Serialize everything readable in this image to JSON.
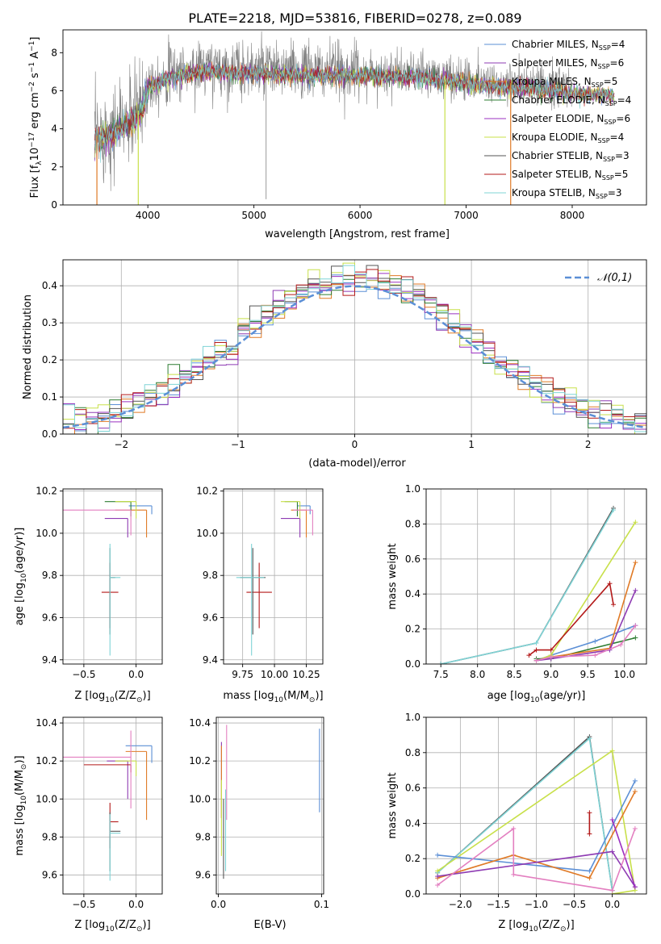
{
  "title": "PLATE=2218, MJD=53816, FIBERID=0278, z=0.089",
  "colors": {
    "chabrier_miles": "#5b8fd6",
    "salpeter_miles": "#8e3bb3",
    "kroupa_miles": "#e07a26",
    "chabrier_elodie": "#2e7d32",
    "salpeter_elodie": "#9b30c0",
    "kroupa_elodie": "#c8e04a",
    "chabrier_stelib": "#555555",
    "salpeter_stelib": "#b31919",
    "kroupa_stelib": "#7fd4d6",
    "gaussian": "#5b8fd6",
    "data": "#808080",
    "pink": "#e37fc0"
  },
  "chart_data": [
    {
      "id": "spectrum",
      "type": "line",
      "xlabel": "wavelength [Angstrom, rest frame]",
      "ylabel": "Flux [f",
      "ylabel_parts": [
        "Flux [f",
        "λ",
        "10",
        "−17",
        " erg cm",
        "−2",
        " s",
        "−1",
        " A",
        "−1",
        "]"
      ],
      "xlim": [
        3200,
        8700
      ],
      "ylim": [
        0,
        9.2
      ],
      "xticks": [
        4000,
        5000,
        6000,
        7000,
        8000
      ],
      "yticks": [
        0,
        2,
        4,
        6,
        8
      ],
      "legend_position": "right",
      "legend": [
        {
          "name": "Chabrier MILES, N",
          "sub": "SSP",
          "suffix": "=4",
          "color_key": "chabrier_miles"
        },
        {
          "name": "Salpeter MILES, N",
          "sub": "SSP",
          "suffix": "=6",
          "color_key": "salpeter_miles"
        },
        {
          "name": "Kroupa MILES, N",
          "sub": "SSP",
          "suffix": "=5",
          "color_key": "kroupa_miles"
        },
        {
          "name": "Chabrier ELODIE, N",
          "sub": "SSP",
          "suffix": "=4",
          "color_key": "chabrier_elodie"
        },
        {
          "name": "Salpeter ELODIE, N",
          "sub": "SSP",
          "suffix": "=6",
          "color_key": "salpeter_elodie"
        },
        {
          "name": "Kroupa ELODIE, N",
          "sub": "SSP",
          "suffix": "=4",
          "color_key": "kroupa_elodie"
        },
        {
          "name": "Chabrier STELIB, N",
          "sub": "SSP",
          "suffix": "=3",
          "color_key": "chabrier_stelib"
        },
        {
          "name": "Salpeter STELIB, N",
          "sub": "SSP",
          "suffix": "=5",
          "color_key": "salpeter_stelib"
        },
        {
          "name": "Kroupa STELIB, N",
          "sub": "SSP",
          "suffix": "=3",
          "color_key": "kroupa_stelib"
        }
      ],
      "continuum": [
        [
          3500,
          3.6
        ],
        [
          3650,
          3.9
        ],
        [
          3800,
          4.4
        ],
        [
          3900,
          4.9
        ],
        [
          3950,
          5.2
        ],
        [
          4000,
          6.4
        ],
        [
          4200,
          6.9
        ],
        [
          4500,
          7.2
        ],
        [
          5000,
          7.1
        ],
        [
          5500,
          7.0
        ],
        [
          6000,
          7.0
        ],
        [
          6500,
          6.9
        ],
        [
          7000,
          6.6
        ],
        [
          7400,
          6.4
        ],
        [
          7800,
          6.2
        ],
        [
          8200,
          6.0
        ],
        [
          8400,
          5.9
        ]
      ],
      "data_range": [
        3500,
        8000
      ],
      "model_range": [
        3500,
        8400
      ],
      "model_drops": [
        3520,
        3910,
        6800,
        7420
      ]
    },
    {
      "id": "residuals",
      "type": "histogram",
      "xlabel": "(data-model)/error",
      "ylabel": "Normed distribution",
      "xlim": [
        -2.5,
        2.5
      ],
      "ylim": [
        0,
        0.47
      ],
      "xticks": [
        -2,
        -1,
        0,
        1,
        2
      ],
      "yticks": [
        0.0,
        0.1,
        0.2,
        0.3,
        0.4
      ],
      "legend": [
        {
          "name": "𝒩(0,1)",
          "color_key": "gaussian"
        }
      ],
      "legend_position": "top-right",
      "gaussian": {
        "mean": 0,
        "sigma": 1
      },
      "bin_width": 0.1,
      "series": [
        "chabrier_miles",
        "salpeter_miles",
        "kroupa_miles",
        "chabrier_elodie",
        "salpeter_elodie",
        "kroupa_elodie",
        "chabrier_stelib",
        "salpeter_stelib",
        "kroupa_stelib"
      ]
    },
    {
      "id": "age_vs_z",
      "type": "scatter",
      "xlabel": "Z [log",
      "xlabel_parts": [
        "Z [log",
        "10",
        "(Z/Z",
        "⊙",
        ")]"
      ],
      "ylabel_parts": [
        "age  [log",
        "10",
        "(age/yr)]"
      ],
      "xlim": [
        -0.7,
        0.25
      ],
      "ylim": [
        9.38,
        10.21
      ],
      "xticks": [
        -0.5,
        0.0
      ],
      "yticks": [
        9.4,
        9.6,
        9.8,
        10.0,
        10.2
      ],
      "points": [
        {
          "x": 0.15,
          "y": 10.13,
          "xerr": [
            0.22,
            0.0
          ],
          "yerr": [
            0.04,
            0.0
          ],
          "color_key": "chabrier_miles"
        },
        {
          "x": -0.08,
          "y": 10.07,
          "xerr": [
            0.22,
            0.0
          ],
          "yerr": [
            0.09,
            0.0
          ],
          "color_key": "salpeter_miles"
        },
        {
          "x": 0.1,
          "y": 10.11,
          "xerr": [
            0.3,
            0.0
          ],
          "yerr": [
            0.13,
            0.0
          ],
          "color_key": "kroupa_miles"
        },
        {
          "x": -0.05,
          "y": 10.15,
          "xerr": [
            0.25,
            0.0
          ],
          "yerr": [
            0.07,
            0.0
          ],
          "color_key": "chabrier_elodie"
        },
        {
          "x": 0.0,
          "y": 10.15,
          "xerr": [
            0.2,
            0.0
          ],
          "yerr": [
            0.08,
            0.0
          ],
          "color_key": "kroupa_elodie"
        },
        {
          "x": -0.05,
          "y": 10.11,
          "xerr": [
            0.65,
            0.0
          ],
          "yerr": [
            0.12,
            0.0
          ],
          "color_key": "pink"
        },
        {
          "x": -0.25,
          "y": 9.72,
          "xerr": [
            0.08,
            0.08
          ],
          "yerr": [
            0.17,
            0.14
          ],
          "color_key": "salpeter_stelib"
        },
        {
          "x": -0.25,
          "y": 9.79,
          "xerr": [
            0.0,
            0.05
          ],
          "yerr": [
            0.27,
            0.14
          ],
          "color_key": "chabrier_stelib"
        },
        {
          "x": -0.25,
          "y": 9.79,
          "xerr": [
            0.0,
            0.1
          ],
          "yerr": [
            0.37,
            0.16
          ],
          "color_key": "kroupa_stelib"
        }
      ]
    },
    {
      "id": "age_vs_mass",
      "type": "scatter",
      "xlabel_parts": [
        "mass [log",
        "10",
        "(M/M",
        "⊙",
        ")]"
      ],
      "xlim": [
        9.6,
        10.38
      ],
      "ylim": [
        9.38,
        10.21
      ],
      "xticks": [
        9.75,
        10.0,
        10.25
      ],
      "xticklabels": [
        "9.75",
        "10.00",
        "10.25"
      ],
      "yticks": [
        9.4,
        9.6,
        9.8,
        10.0,
        10.2
      ],
      "points": [
        {
          "x": 10.28,
          "y": 10.13,
          "xerr": [
            0.1,
            0.0
          ],
          "yerr": [
            0.04,
            0.0
          ],
          "color_key": "chabrier_miles"
        },
        {
          "x": 10.2,
          "y": 10.07,
          "xerr": [
            0.15,
            0.0
          ],
          "yerr": [
            0.09,
            0.0
          ],
          "color_key": "salpeter_miles"
        },
        {
          "x": 10.25,
          "y": 10.11,
          "xerr": [
            0.12,
            0.0
          ],
          "yerr": [
            0.13,
            0.0
          ],
          "color_key": "kroupa_miles"
        },
        {
          "x": 10.18,
          "y": 10.15,
          "xerr": [
            0.1,
            0.0
          ],
          "yerr": [
            0.07,
            0.0
          ],
          "color_key": "chabrier_elodie"
        },
        {
          "x": 10.2,
          "y": 10.15,
          "xerr": [
            0.15,
            0.0
          ],
          "yerr": [
            0.08,
            0.0
          ],
          "color_key": "kroupa_elodie"
        },
        {
          "x": 10.3,
          "y": 10.11,
          "xerr": [
            0.15,
            0.0
          ],
          "yerr": [
            0.12,
            0.0
          ],
          "color_key": "pink"
        },
        {
          "x": 9.88,
          "y": 9.72,
          "xerr": [
            0.1,
            0.1
          ],
          "yerr": [
            0.17,
            0.14
          ],
          "color_key": "salpeter_stelib"
        },
        {
          "x": 9.83,
          "y": 9.79,
          "xerr": [
            0.1,
            0.1
          ],
          "yerr": [
            0.27,
            0.14
          ],
          "color_key": "chabrier_stelib"
        },
        {
          "x": 9.82,
          "y": 9.79,
          "xerr": [
            0.12,
            0.1
          ],
          "yerr": [
            0.37,
            0.16
          ],
          "color_key": "kroupa_stelib"
        }
      ]
    },
    {
      "id": "weight_vs_age",
      "type": "line",
      "xlabel_parts": [
        "age  [log",
        "10",
        "(age/yr)]"
      ],
      "ylabel": "mass weight",
      "xlim": [
        7.3,
        10.3
      ],
      "ylim": [
        0,
        1.0
      ],
      "xticks": [
        7.5,
        8.0,
        8.5,
        9.0,
        9.5,
        10.0
      ],
      "yticks": [
        0.0,
        0.2,
        0.4,
        0.6,
        0.8,
        1.0
      ],
      "series": [
        {
          "color_key": "chabrier_stelib",
          "x": [
            7.5,
            8.8,
            9.85
          ],
          "y": [
            0.0,
            0.12,
            0.89
          ]
        },
        {
          "color_key": "kroupa_stelib",
          "x": [
            7.5,
            8.8,
            9.85
          ],
          "y": [
            0.0,
            0.12,
            0.88
          ]
        },
        {
          "color_key": "chabrier_miles",
          "x": [
            8.8,
            9.0,
            9.6,
            10.15
          ],
          "y": [
            0.02,
            0.05,
            0.13,
            0.22
          ]
        },
        {
          "color_key": "kroupa_elodie",
          "x": [
            8.8,
            9.0,
            10.15
          ],
          "y": [
            0.02,
            0.05,
            0.81
          ]
        },
        {
          "color_key": "chabrier_elodie",
          "x": [
            8.8,
            9.0,
            10.15
          ],
          "y": [
            0.03,
            0.03,
            0.15
          ]
        },
        {
          "color_key": "kroupa_miles",
          "x": [
            8.8,
            9.0,
            9.8,
            10.15
          ],
          "y": [
            0.02,
            0.04,
            0.09,
            0.58
          ]
        },
        {
          "color_key": "salpeter_miles",
          "x": [
            8.8,
            9.0,
            9.8,
            10.15
          ],
          "y": [
            0.02,
            0.03,
            0.08,
            0.42
          ]
        },
        {
          "color_key": "salpeter_stelib",
          "x": [
            8.7,
            8.8,
            9.0,
            9.8,
            9.85
          ],
          "y": [
            0.05,
            0.08,
            0.08,
            0.46,
            0.34
          ]
        },
        {
          "color_key": "pink",
          "x": [
            8.8,
            9.0,
            9.6,
            9.95,
            10.15
          ],
          "y": [
            0.02,
            0.04,
            0.05,
            0.11,
            0.22
          ]
        }
      ]
    },
    {
      "id": "mass_vs_z",
      "type": "scatter",
      "xlabel_parts": [
        "Z [log",
        "10",
        "(Z/Z",
        "⊙",
        ")]"
      ],
      "ylabel_parts": [
        "mass [log",
        "10",
        "(M/M",
        "⊙",
        ")]"
      ],
      "xlim": [
        -0.7,
        0.25
      ],
      "ylim": [
        9.5,
        10.43
      ],
      "xticks": [
        -0.5,
        0.0
      ],
      "yticks": [
        9.6,
        9.8,
        10.0,
        10.2,
        10.4
      ],
      "points": [
        {
          "x": 0.15,
          "y": 10.28,
          "xerr": [
            0.25,
            0.0
          ],
          "yerr": [
            0.09,
            0.0
          ],
          "color_key": "chabrier_miles"
        },
        {
          "x": -0.08,
          "y": 10.2,
          "xerr": [
            0.2,
            0.0
          ],
          "yerr": [
            0.2,
            0.0
          ],
          "color_key": "salpeter_miles"
        },
        {
          "x": 0.1,
          "y": 10.25,
          "xerr": [
            0.2,
            0.0
          ],
          "yerr": [
            0.36,
            0.0
          ],
          "color_key": "kroupa_miles"
        },
        {
          "x": -0.05,
          "y": 10.18,
          "xerr": [
            0.45,
            0.0
          ],
          "yerr": [
            0.04,
            0.0
          ],
          "color_key": "salpeter_stelib"
        },
        {
          "x": 0.0,
          "y": 10.2,
          "xerr": [
            0.2,
            0.0
          ],
          "yerr": [
            0.08,
            0.0
          ],
          "color_key": "kroupa_elodie"
        },
        {
          "x": -0.05,
          "y": 10.22,
          "xerr": [
            0.65,
            0.0
          ],
          "yerr": [
            0.27,
            0.14
          ],
          "color_key": "pink"
        },
        {
          "x": -0.25,
          "y": 9.88,
          "xerr": [
            0.0,
            0.08
          ],
          "yerr": [
            0.14,
            0.1
          ],
          "color_key": "salpeter_stelib"
        },
        {
          "x": -0.25,
          "y": 9.83,
          "xerr": [
            0.0,
            0.1
          ],
          "yerr": [
            0.21,
            0.1
          ],
          "color_key": "chabrier_stelib"
        },
        {
          "x": -0.25,
          "y": 9.82,
          "xerr": [
            0.0,
            0.1
          ],
          "yerr": [
            0.25,
            0.1
          ],
          "color_key": "kroupa_stelib"
        }
      ]
    },
    {
      "id": "mass_vs_ebv",
      "type": "scatter",
      "xlabel": "E(B-V)",
      "xlim": [
        -0.002,
        0.102
      ],
      "ylim": [
        9.5,
        10.43
      ],
      "xticks": [
        0.0,
        0.1
      ],
      "yticks": [
        9.6,
        9.8,
        10.0,
        10.2,
        10.4
      ],
      "points": [
        {
          "x": 0.098,
          "y": 10.15,
          "yerr": [
            0.22,
            0.22
          ],
          "color_key": "chabrier_miles"
        },
        {
          "x": 0.003,
          "y": 10.1,
          "yerr": [
            0.2,
            0.2
          ],
          "color_key": "salpeter_miles"
        },
        {
          "x": 0.003,
          "y": 10.1,
          "yerr": [
            0.2,
            0.18
          ],
          "color_key": "kroupa_miles"
        },
        {
          "x": 0.008,
          "y": 10.15,
          "yerr": [
            0.26,
            0.24
          ],
          "color_key": "pink"
        },
        {
          "x": 0.005,
          "y": 9.8,
          "yerr": [
            0.22,
            0.2
          ],
          "color_key": "chabrier_stelib"
        },
        {
          "x": 0.007,
          "y": 9.85,
          "yerr": [
            0.23,
            0.2
          ],
          "color_key": "kroupa_stelib"
        },
        {
          "x": 0.003,
          "y": 9.9,
          "yerr": [
            0.2,
            0.2
          ],
          "color_key": "kroupa_elodie"
        }
      ]
    },
    {
      "id": "weight_vs_z",
      "type": "line",
      "xlabel_parts": [
        "Z [log",
        "10",
        "(Z/Z",
        "⊙",
        ")]"
      ],
      "ylabel": "mass weight",
      "xlim": [
        -2.45,
        0.45
      ],
      "ylim": [
        0,
        1.0
      ],
      "xticks": [
        -2.0,
        -1.5,
        -1.0,
        -0.5,
        0.0
      ],
      "yticks": [
        0.0,
        0.2,
        0.4,
        0.6,
        0.8,
        1.0
      ],
      "series": [
        {
          "color_key": "chabrier_stelib",
          "x": [
            -2.3,
            -0.3,
            -0.0
          ],
          "y": [
            0.12,
            0.89,
            0.02
          ]
        },
        {
          "color_key": "kroupa_stelib",
          "x": [
            -2.3,
            -0.3,
            -0.0
          ],
          "y": [
            0.12,
            0.88,
            0.02
          ]
        },
        {
          "color_key": "kroupa_elodie",
          "x": [
            -2.3,
            0.0,
            0.3,
            0.0
          ],
          "y": [
            0.13,
            0.81,
            0.02,
            0.0
          ]
        },
        {
          "color_key": "chabrier_miles",
          "x": [
            -2.3,
            -0.3,
            0.3
          ],
          "y": [
            0.22,
            0.13,
            0.64
          ]
        },
        {
          "color_key": "kroupa_miles",
          "x": [
            -2.3,
            -1.3,
            -0.3,
            0.3
          ],
          "y": [
            0.09,
            0.22,
            0.09,
            0.58
          ]
        },
        {
          "color_key": "salpeter_miles",
          "x": [
            -2.3,
            0.0,
            0.3
          ],
          "y": [
            0.1,
            0.24,
            0.04
          ]
        },
        {
          "color_key": "salpeter_elodie",
          "x": [
            0.0,
            0.3
          ],
          "y": [
            0.42,
            0.04
          ]
        },
        {
          "color_key": "pink",
          "x": [
            -2.3,
            -1.3,
            -1.3,
            0.0,
            0.3
          ],
          "y": [
            0.05,
            0.37,
            0.11,
            0.02,
            0.37
          ]
        },
        {
          "color_key": "salpeter_stelib",
          "x": [
            -0.3,
            -0.3
          ],
          "y": [
            0.46,
            0.34
          ]
        }
      ]
    }
  ]
}
